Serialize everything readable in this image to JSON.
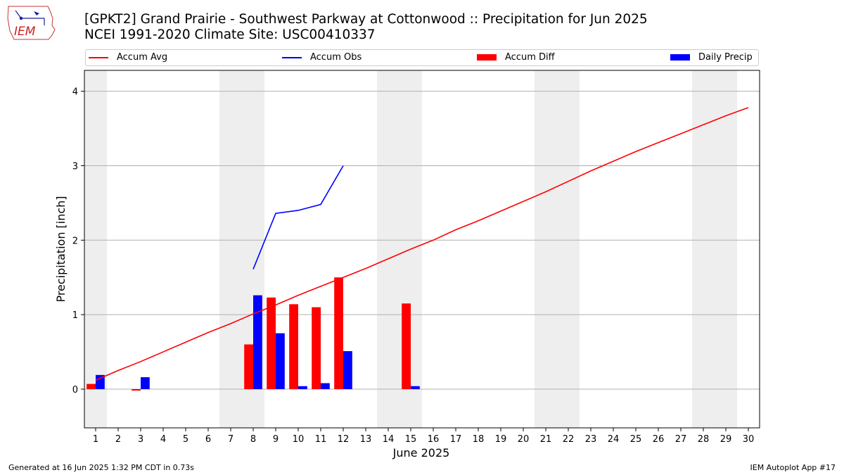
{
  "header": {
    "title_line1": "[GPKT2] Grand Prairie - Southwest Parkway at Cottonwood :: Precipitation for Jun 2025",
    "title_line2": "NCEI 1991-2020 Climate Site: USC00410337"
  },
  "logo": {
    "text": "IEM"
  },
  "legend": {
    "accum_avg": "Accum Avg",
    "accum_obs": "Accum Obs",
    "accum_diff": "Accum Diff",
    "daily_precip": "Daily Precip"
  },
  "colors": {
    "avg": "#ff0000",
    "obs": "#0000ff",
    "diff": "#ff0000",
    "daily": "#0000ff",
    "weekend": "#eeeeee",
    "grid": "#b0b0b0"
  },
  "footer": {
    "generated": "Generated at 16 Jun 2025 1:32 PM CDT in 0.73s",
    "app": "IEM Autoplot App #17"
  },
  "chart_data": {
    "type": "bar",
    "xlabel": "June 2025",
    "ylabel": "Precipitation [inch]",
    "ylim": [
      -0.52,
      4.28
    ],
    "yticks": [
      0,
      1,
      2,
      3,
      4
    ],
    "xlim": [
      0.5,
      30.5
    ],
    "days": [
      1,
      2,
      3,
      4,
      5,
      6,
      7,
      8,
      9,
      10,
      11,
      12,
      13,
      14,
      15,
      16,
      17,
      18,
      19,
      20,
      21,
      22,
      23,
      24,
      25,
      26,
      27,
      28,
      29,
      30
    ],
    "weekend_days": [
      1,
      7,
      8,
      14,
      15,
      21,
      22,
      28,
      29
    ],
    "grid": true,
    "legend_position": "top",
    "series": [
      {
        "name": "Accum Avg",
        "kind": "line",
        "x": [
          1,
          2,
          3,
          4,
          5,
          6,
          7,
          8,
          9,
          10,
          11,
          12,
          13,
          14,
          15,
          16,
          17,
          18,
          19,
          20,
          21,
          22,
          23,
          24,
          25,
          26,
          27,
          28,
          29,
          30
        ],
        "values": [
          0.12,
          0.25,
          0.37,
          0.5,
          0.63,
          0.76,
          0.88,
          1.01,
          1.13,
          1.26,
          1.38,
          1.5,
          1.62,
          1.75,
          1.88,
          2.0,
          2.14,
          2.26,
          2.39,
          2.52,
          2.65,
          2.79,
          2.93,
          3.06,
          3.19,
          3.31,
          3.43,
          3.55,
          3.67,
          3.78
        ]
      },
      {
        "name": "Accum Obs",
        "kind": "line",
        "x": [
          8,
          9,
          10,
          11,
          12
        ],
        "values": [
          1.61,
          2.36,
          2.4,
          2.48,
          3.0
        ]
      },
      {
        "name": "Accum Diff",
        "kind": "bar",
        "x": [
          1,
          3,
          8,
          9,
          10,
          11,
          12,
          15
        ],
        "values": [
          0.07,
          -0.02,
          0.6,
          1.23,
          1.14,
          1.1,
          1.5,
          1.15
        ]
      },
      {
        "name": "Daily Precip",
        "kind": "bar",
        "x": [
          1,
          3,
          8,
          9,
          10,
          11,
          12,
          15
        ],
        "values": [
          0.19,
          0.16,
          1.26,
          0.75,
          0.04,
          0.08,
          0.51,
          0.04
        ]
      }
    ]
  }
}
